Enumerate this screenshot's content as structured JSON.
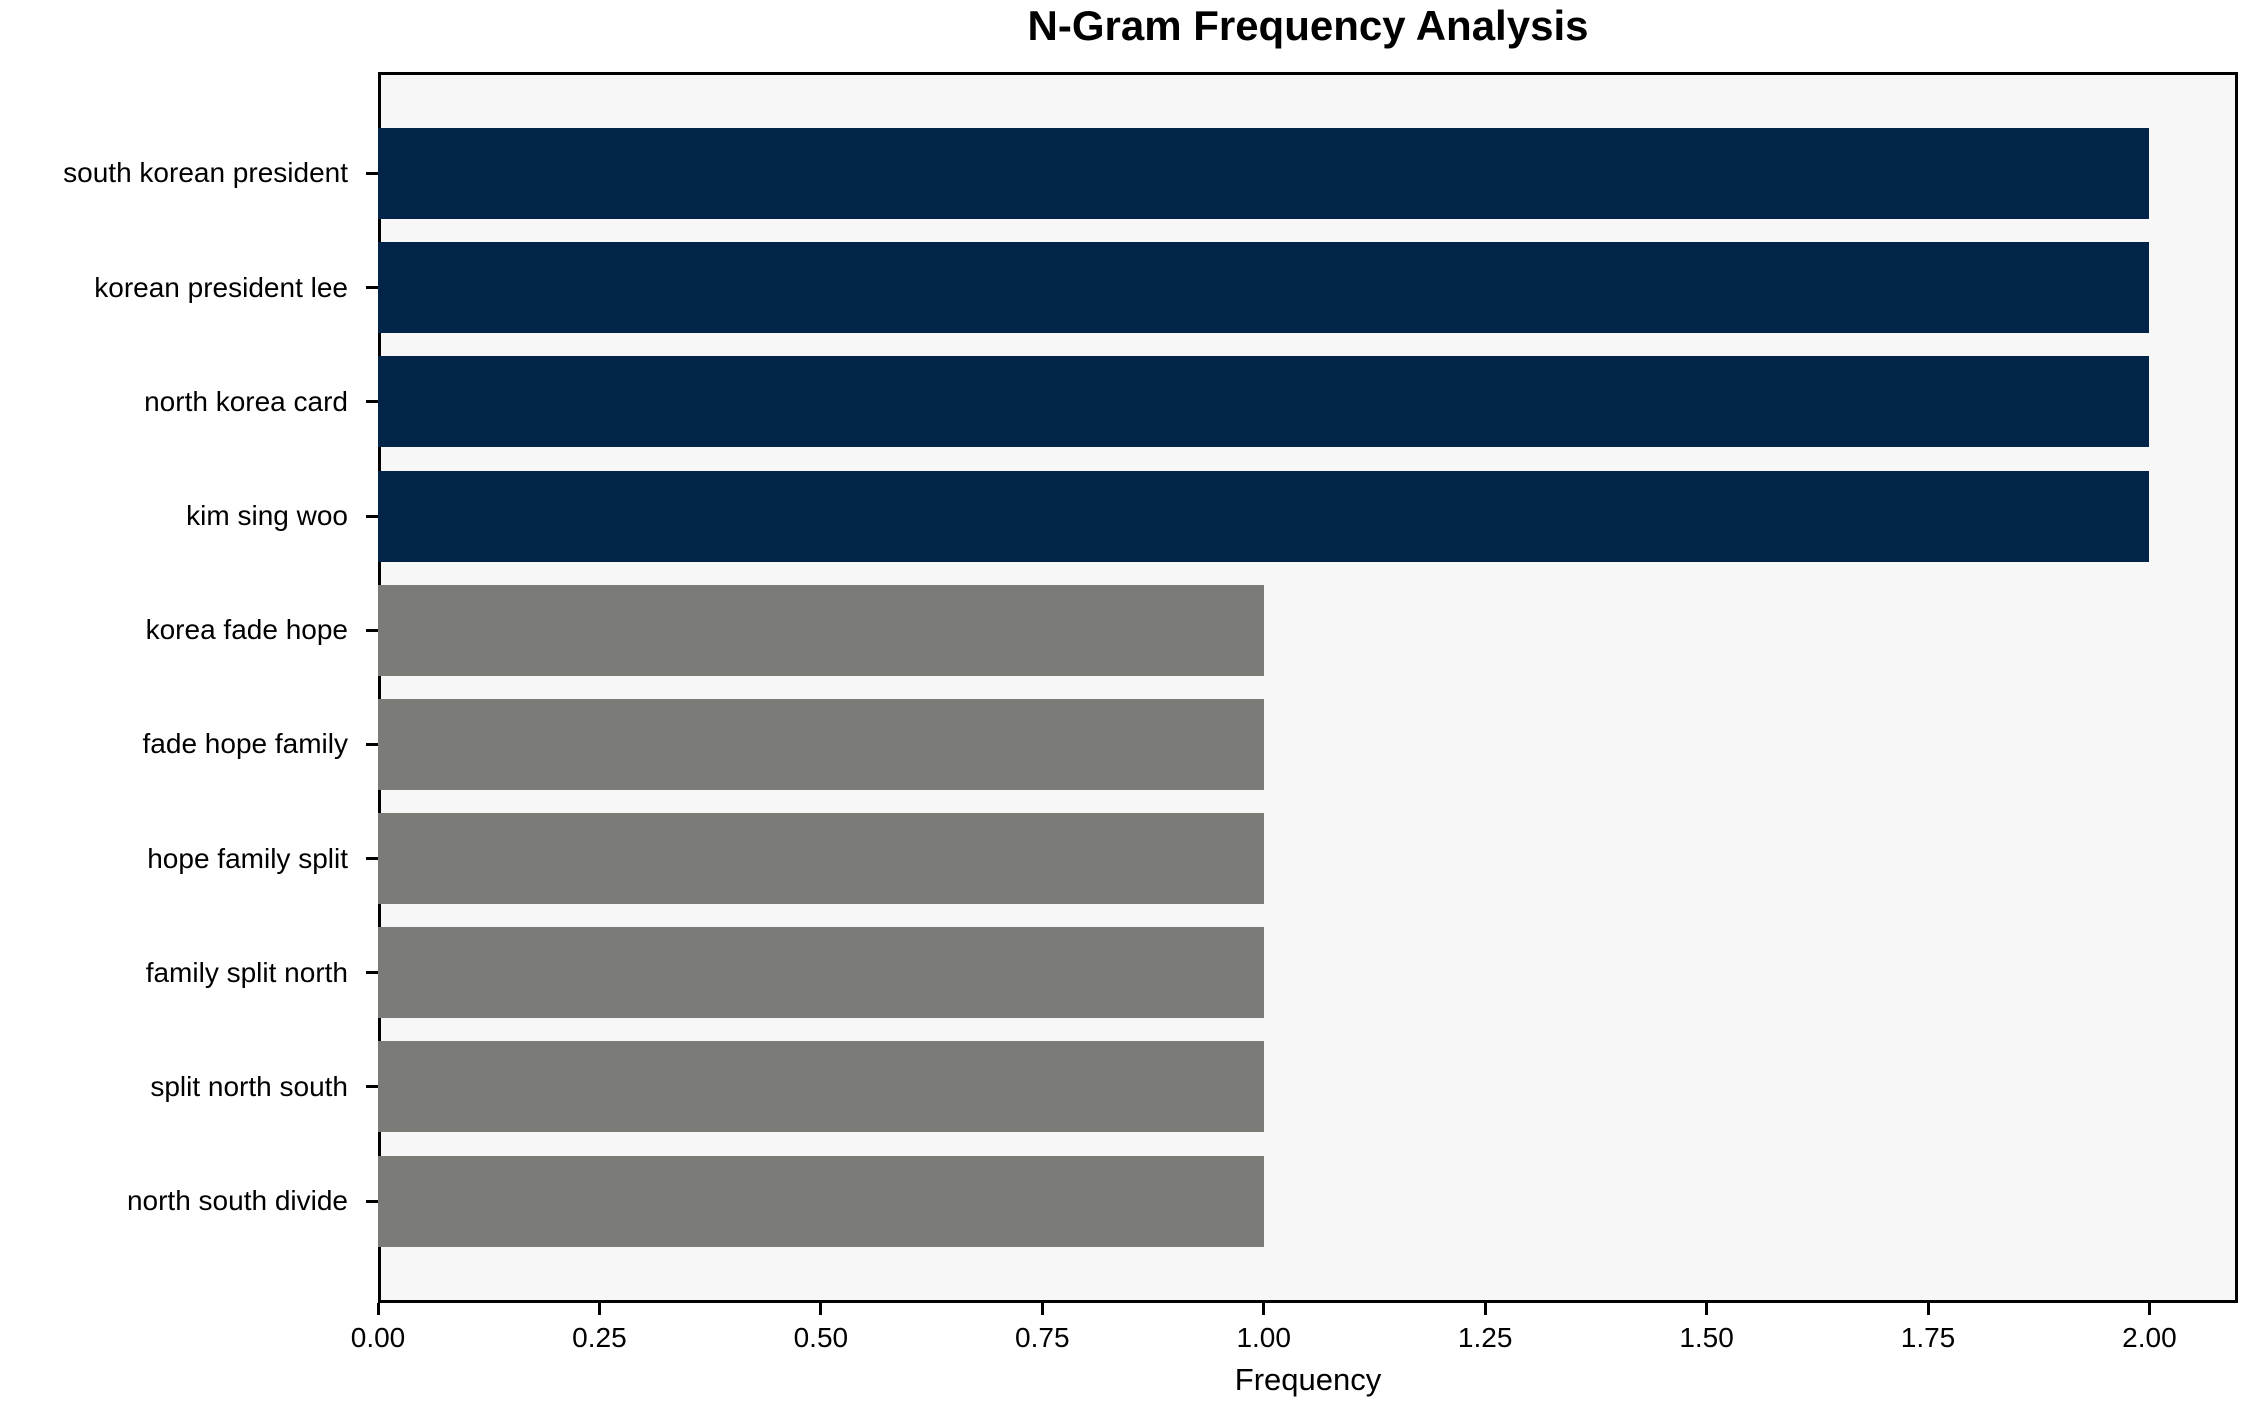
{
  "chart_data": {
    "type": "bar",
    "orientation": "horizontal",
    "title": "N-Gram Frequency Analysis",
    "xlabel": "Frequency",
    "ylabel": "",
    "categories": [
      "south korean president",
      "korean president lee",
      "north korea card",
      "kim sing woo",
      "korea fade hope",
      "fade hope family",
      "hope family split",
      "family split north",
      "split north south",
      "north south divide"
    ],
    "values": [
      2,
      2,
      2,
      2,
      1,
      1,
      1,
      1,
      1,
      1
    ],
    "bar_colors": [
      "#022449",
      "#022449",
      "#022449",
      "#022449",
      "#7b7b78",
      "#7b7b78",
      "#7b7b78",
      "#7b7b78",
      "#7b7b78",
      "#7b7b78"
    ],
    "xlim": [
      0,
      2.1
    ],
    "xticks": [
      "0.00",
      "0.25",
      "0.50",
      "0.75",
      "1.00",
      "1.25",
      "1.50",
      "1.75",
      "2.00"
    ],
    "xtick_values": [
      0,
      0.25,
      0.5,
      0.75,
      1.0,
      1.25,
      1.5,
      1.75,
      2.0
    ],
    "colors": {
      "high_frequency": "#022449",
      "low_frequency": "#7b7b78",
      "plot_background": "#f7f7f7",
      "figure_background": "#ffffff",
      "axis": "#000000"
    },
    "legend": null,
    "grid": false
  }
}
